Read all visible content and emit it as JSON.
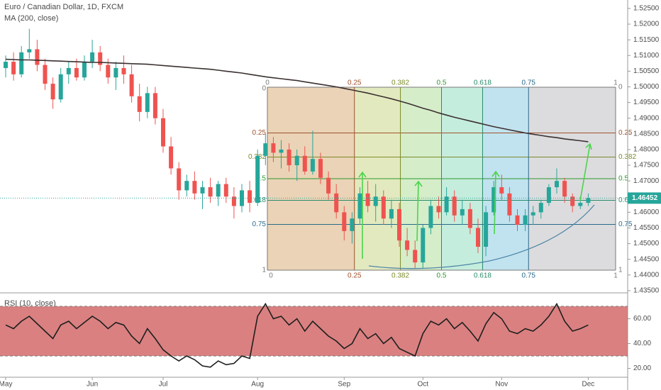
{
  "chart_data": [
    {
      "type": "candlestick",
      "title": "Euro / Canadian Dollar, 1D, FXCM",
      "up_color": "#26a69a",
      "down_color": "#ef5350",
      "candles": [
        [
          1.506,
          1.51,
          1.503,
          1.508
        ],
        [
          1.508,
          1.511,
          1.502,
          1.504
        ],
        [
          1.504,
          1.513,
          1.503,
          1.511
        ],
        [
          1.511,
          1.5185,
          1.509,
          1.512
        ],
        [
          1.512,
          1.515,
          1.505,
          1.507
        ],
        [
          1.507,
          1.509,
          1.499,
          1.501
        ],
        [
          1.501,
          1.503,
          1.493,
          1.496
        ],
        [
          1.496,
          1.506,
          1.495,
          1.504
        ],
        [
          1.504,
          1.508,
          1.501,
          1.506
        ],
        [
          1.506,
          1.509,
          1.502,
          1.503
        ],
        [
          1.503,
          1.51,
          1.502,
          1.508
        ],
        [
          1.508,
          1.515,
          1.506,
          1.511
        ],
        [
          1.511,
          1.513,
          1.505,
          1.507
        ],
        [
          1.507,
          1.509,
          1.501,
          1.503
        ],
        [
          1.503,
          1.508,
          1.499,
          1.506
        ],
        [
          1.506,
          1.51,
          1.501,
          1.504
        ],
        [
          1.504,
          1.507,
          1.495,
          1.497
        ],
        [
          1.497,
          1.501,
          1.489,
          1.492
        ],
        [
          1.492,
          1.5,
          1.49,
          1.498
        ],
        [
          1.498,
          1.5,
          1.488,
          1.49
        ],
        [
          1.49,
          1.493,
          1.479,
          1.481
        ],
        [
          1.481,
          1.484,
          1.472,
          1.474
        ],
        [
          1.474,
          1.476,
          1.464,
          1.467
        ],
        [
          1.467,
          1.472,
          1.465,
          1.47
        ],
        [
          1.47,
          1.473,
          1.464,
          1.466
        ],
        [
          1.466,
          1.47,
          1.461,
          1.468
        ],
        [
          1.468,
          1.471,
          1.463,
          1.465
        ],
        [
          1.465,
          1.47,
          1.462,
          1.469
        ],
        [
          1.469,
          1.471,
          1.463,
          1.465
        ],
        [
          1.465,
          1.468,
          1.458,
          1.462
        ],
        [
          1.462,
          1.469,
          1.46,
          1.467
        ],
        [
          1.467,
          1.47,
          1.46,
          1.463
        ],
        [
          1.463,
          1.48,
          1.462,
          1.478
        ],
        [
          1.478,
          1.485,
          1.475,
          1.482
        ],
        [
          1.482,
          1.484,
          1.476,
          1.479
        ],
        [
          1.479,
          1.483,
          1.474,
          1.48
        ],
        [
          1.48,
          1.482,
          1.473,
          1.475
        ],
        [
          1.475,
          1.48,
          1.47,
          1.478
        ],
        [
          1.478,
          1.481,
          1.472,
          1.473
        ],
        [
          1.473,
          1.486,
          1.472,
          1.477
        ],
        [
          1.477,
          1.479,
          1.469,
          1.471
        ],
        [
          1.471,
          1.473,
          1.464,
          1.466
        ],
        [
          1.466,
          1.469,
          1.458,
          1.46
        ],
        [
          1.46,
          1.462,
          1.451,
          1.454
        ],
        [
          1.454,
          1.46,
          1.45,
          1.458
        ],
        [
          1.458,
          1.468,
          1.456,
          1.466
        ],
        [
          1.466,
          1.47,
          1.46,
          1.462
        ],
        [
          1.462,
          1.469,
          1.457,
          1.465
        ],
        [
          1.465,
          1.467,
          1.456,
          1.458
        ],
        [
          1.458,
          1.464,
          1.455,
          1.461
        ],
        [
          1.461,
          1.463,
          1.449,
          1.451
        ],
        [
          1.451,
          1.455,
          1.446,
          1.448
        ],
        [
          1.448,
          1.451,
          1.442,
          1.444
        ],
        [
          1.444,
          1.456,
          1.442,
          1.455
        ],
        [
          1.455,
          1.464,
          1.453,
          1.462
        ],
        [
          1.462,
          1.465,
          1.458,
          1.46
        ],
        [
          1.46,
          1.468,
          1.459,
          1.465
        ],
        [
          1.465,
          1.467,
          1.457,
          1.459
        ],
        [
          1.459,
          1.464,
          1.456,
          1.461
        ],
        [
          1.461,
          1.463,
          1.453,
          1.455
        ],
        [
          1.455,
          1.458,
          1.447,
          1.449
        ],
        [
          1.449,
          1.462,
          1.446,
          1.46
        ],
        [
          1.46,
          1.47,
          1.459,
          1.468
        ],
        [
          1.468,
          1.472,
          1.464,
          1.466
        ],
        [
          1.466,
          1.468,
          1.457,
          1.459
        ],
        [
          1.459,
          1.461,
          1.454,
          1.456
        ],
        [
          1.456,
          1.461,
          1.454,
          1.459
        ],
        [
          1.459,
          1.462,
          1.456,
          1.46
        ],
        [
          1.46,
          1.464,
          1.458,
          1.463
        ],
        [
          1.463,
          1.469,
          1.462,
          1.468
        ],
        [
          1.468,
          1.474,
          1.466,
          1.47
        ],
        [
          1.47,
          1.471,
          1.463,
          1.465
        ],
        [
          1.465,
          1.466,
          1.46,
          1.462
        ],
        [
          1.462,
          1.465,
          1.461,
          1.463
        ],
        [
          1.463,
          1.466,
          1.462,
          1.46452
        ]
      ],
      "overlay": {
        "name": "MA (200, close)",
        "color": "#3b3030",
        "values": [
          1.5088,
          1.5087,
          1.5086,
          1.5086,
          1.5085,
          1.5084,
          1.5083,
          1.5082,
          1.5081,
          1.508,
          1.5079,
          1.5078,
          1.5078,
          1.5077,
          1.5076,
          1.5075,
          1.5074,
          1.5073,
          1.5072,
          1.507,
          1.5068,
          1.5066,
          1.5064,
          1.5062,
          1.506,
          1.5058,
          1.5056,
          1.5053,
          1.505,
          1.5047,
          1.5044,
          1.504,
          1.5036,
          1.5032,
          1.5029,
          1.5026,
          1.5023,
          1.502,
          1.5016,
          1.5012,
          1.5008,
          1.5004,
          1.5,
          1.4995,
          1.499,
          1.4985,
          1.498,
          1.4974,
          1.4968,
          1.4962,
          1.4955,
          1.4948,
          1.494,
          1.4932,
          1.4925,
          1.4917,
          1.491,
          1.4903,
          1.4897,
          1.4891,
          1.4885,
          1.4879,
          1.4873,
          1.4868,
          1.4863,
          1.4858,
          1.4853,
          1.4849,
          1.4845,
          1.4841,
          1.4838,
          1.4834,
          1.4831,
          1.4828,
          1.4825
        ]
      },
      "last_price": {
        "value": 1.46452,
        "label": "1.46452"
      },
      "ylim": [
        1.4343,
        1.5277
      ],
      "yticks": [
        {
          "value": 1.525,
          "label": "1.52500"
        },
        {
          "value": 1.52,
          "label": "1.52000"
        },
        {
          "value": 1.515,
          "label": "1.51500"
        },
        {
          "value": 1.51,
          "label": "1.51000"
        },
        {
          "value": 1.505,
          "label": "1.50500"
        },
        {
          "value": 1.5,
          "label": "1.50000"
        },
        {
          "value": 1.495,
          "label": "1.49500"
        },
        {
          "value": 1.49,
          "label": "1.49000"
        },
        {
          "value": 1.485,
          "label": "1.48500"
        },
        {
          "value": 1.48,
          "label": "1.48000"
        },
        {
          "value": 1.475,
          "label": "1.47500"
        },
        {
          "value": 1.47,
          "label": "1.47000"
        },
        {
          "value": 1.465,
          "label": "1.46500"
        },
        {
          "value": 1.46,
          "label": "1.46000"
        },
        {
          "value": 1.455,
          "label": "1.45500"
        },
        {
          "value": 1.45,
          "label": "1.45000"
        },
        {
          "value": 1.445,
          "label": "1.44500"
        },
        {
          "value": 1.44,
          "label": "1.44000"
        },
        {
          "value": 1.435,
          "label": "1.43500"
        }
      ],
      "xticks": [
        {
          "value": 0,
          "label": "May"
        },
        {
          "value": 11,
          "label": "Jun"
        },
        {
          "value": 20,
          "label": "Jul"
        },
        {
          "value": 32,
          "label": "Aug"
        },
        {
          "value": 43,
          "label": "Sep"
        },
        {
          "value": 53,
          "label": "Oct"
        },
        {
          "value": 63,
          "label": "Nov"
        },
        {
          "value": 74,
          "label": "Dec"
        }
      ],
      "fib_levels": [
        0,
        0.25,
        0.382,
        0.5,
        0.618,
        0.75,
        1
      ]
    },
    {
      "type": "line",
      "title": "RSI (10, close)",
      "color": "#1e1e1e",
      "values": [
        55,
        52,
        58,
        62,
        56,
        50,
        44,
        55,
        58,
        52,
        57,
        62,
        58,
        52,
        57,
        55,
        46,
        40,
        52,
        44,
        35,
        30,
        26,
        30,
        27,
        22,
        21,
        26,
        23,
        24,
        30,
        28,
        62,
        72,
        60,
        62,
        55,
        60,
        50,
        58,
        52,
        46,
        42,
        36,
        40,
        52,
        44,
        48,
        40,
        45,
        36,
        33,
        30,
        48,
        58,
        55,
        60,
        52,
        57,
        50,
        42,
        56,
        65,
        60,
        50,
        48,
        52,
        50,
        55,
        62,
        72,
        58,
        50,
        52,
        55
      ],
      "band": [
        30,
        70
      ],
      "band_color": "#d46a6a",
      "ylim": [
        14,
        78
      ],
      "yticks": [
        {
          "value": 60,
          "label": "60.00"
        },
        {
          "value": 40,
          "label": "40.00"
        },
        {
          "value": 20,
          "label": "20.00"
        }
      ]
    }
  ]
}
